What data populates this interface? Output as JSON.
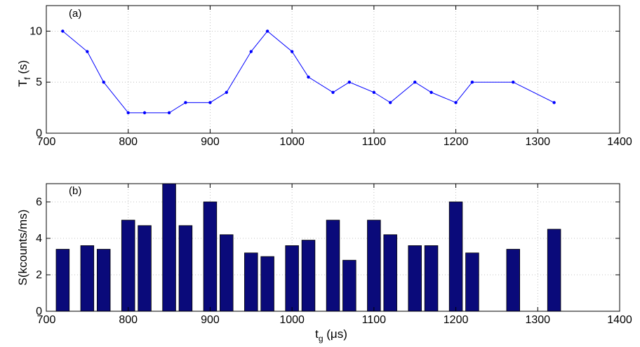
{
  "chart_data": [
    {
      "type": "line",
      "panel_label": "(a)",
      "ylabel_main": "T",
      "ylabel_sub": "f",
      "ylabel_unit": "(s)",
      "xlim": [
        700,
        1400
      ],
      "ylim": [
        0,
        12.5
      ],
      "xticks": [
        700,
        800,
        900,
        1000,
        1100,
        1200,
        1300,
        1400
      ],
      "yticks": [
        0,
        5,
        10
      ],
      "grid": true,
      "color": "#0000ff",
      "x": [
        720,
        750,
        770,
        800,
        820,
        850,
        870,
        900,
        920,
        950,
        970,
        1000,
        1020,
        1050,
        1070,
        1100,
        1120,
        1150,
        1170,
        1200,
        1220,
        1270,
        1320
      ],
      "y": [
        10,
        8,
        5,
        2,
        2,
        2,
        3,
        3,
        4,
        8,
        10,
        8,
        5.5,
        4,
        5,
        4,
        3,
        5,
        4,
        3,
        5,
        5,
        3
      ]
    },
    {
      "type": "bar",
      "panel_label": "(b)",
      "ylabel": "S(kcounts/ms)",
      "xlabel_main": "t",
      "xlabel_sub": "g",
      "xlabel_unit": "(μs)",
      "xlim": [
        700,
        1400
      ],
      "ylim": [
        0,
        7
      ],
      "xticks": [
        700,
        800,
        900,
        1000,
        1100,
        1200,
        1300,
        1400
      ],
      "yticks": [
        0,
        2,
        4,
        6
      ],
      "grid": true,
      "color": "#0a0a7a",
      "bar_width": 16,
      "x": [
        720,
        750,
        770,
        800,
        820,
        850,
        870,
        900,
        920,
        950,
        970,
        1000,
        1020,
        1050,
        1070,
        1100,
        1120,
        1150,
        1170,
        1200,
        1220,
        1270,
        1320
      ],
      "values": [
        3.4,
        3.6,
        3.4,
        5.0,
        4.7,
        7.0,
        4.7,
        6.0,
        4.2,
        3.2,
        3.0,
        3.6,
        3.9,
        5.0,
        2.8,
        5.0,
        4.2,
        3.6,
        3.6,
        6.0,
        3.2,
        3.4,
        4.5
      ]
    }
  ]
}
